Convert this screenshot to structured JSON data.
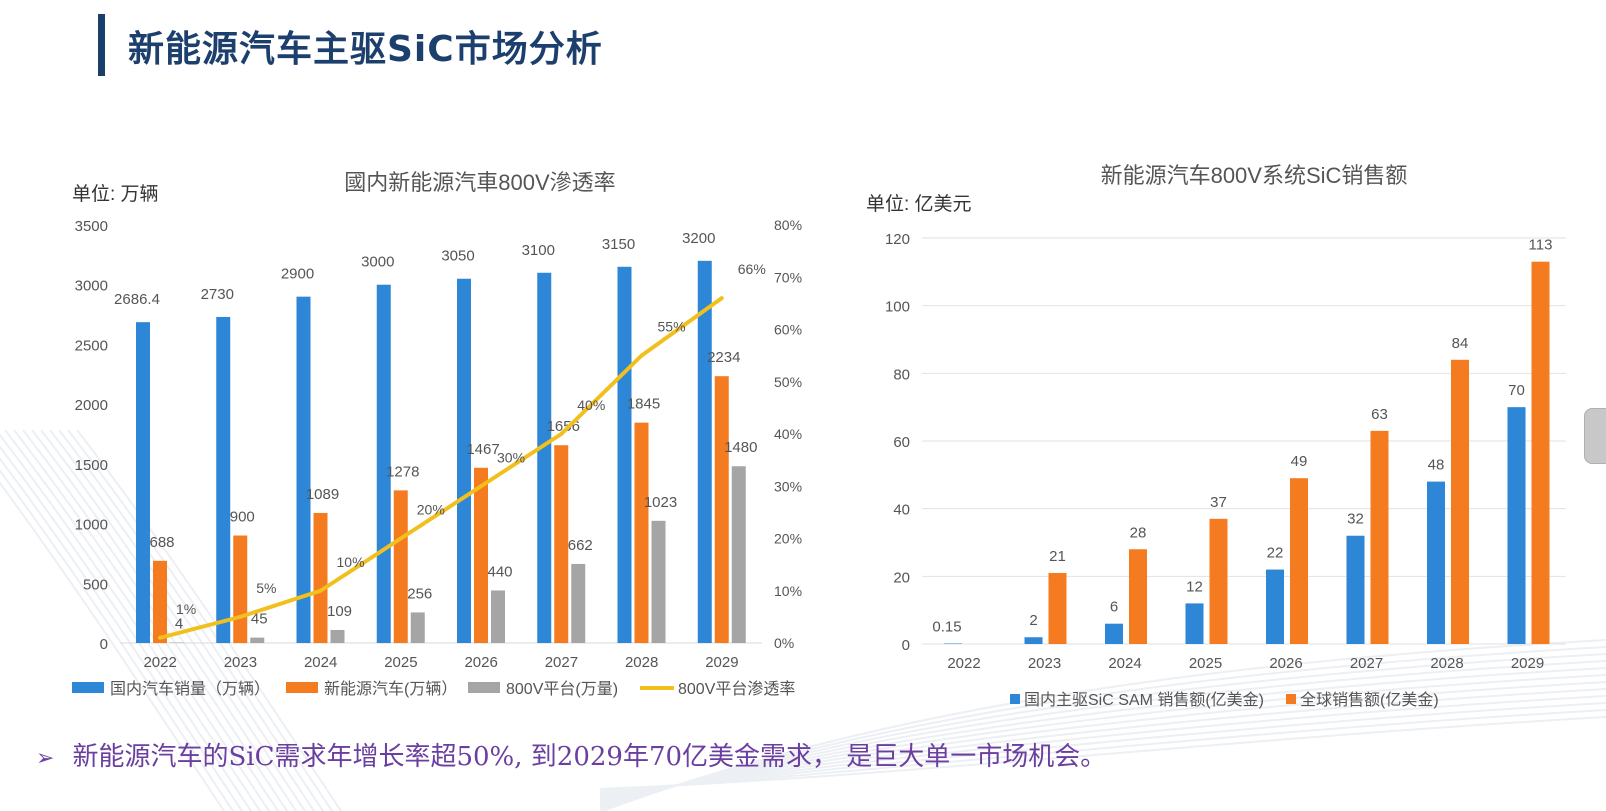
{
  "page": {
    "title": "新能源汽车主驱SiC市场分析",
    "conclusion_marker": "➢",
    "conclusion": "新能源汽车的SiC需求年增长率超50%, 到2029年70亿美金需求，  是巨大单一市场机会。"
  },
  "colors": {
    "title": "#1d3f6e",
    "blue": "#2e86d6",
    "orange": "#f47b20",
    "gray": "#a5a5a5",
    "yellow": "#f2c01e",
    "conclusion": "#6b3fa0"
  },
  "chart_data": [
    {
      "type": "bar",
      "title": "國内新能源汽車800V滲透率",
      "unit_label": "单位: 万辆",
      "categories": [
        "2022",
        "2023",
        "2024",
        "2025",
        "2026",
        "2027",
        "2028",
        "2029"
      ],
      "ylim": [
        0,
        3500
      ],
      "yticks": [
        "0",
        "500",
        "1000",
        "1500",
        "2000",
        "2500",
        "3000",
        "3500"
      ],
      "y2lim": [
        0,
        80
      ],
      "y2ticks": [
        "0%",
        "10%",
        "20%",
        "30%",
        "40%",
        "50%",
        "60%",
        "70%",
        "80%"
      ],
      "legend_position": "bottom",
      "grid": false,
      "series": [
        {
          "name": "国内汽车销量（万辆）",
          "type": "bar",
          "color": "#2e86d6",
          "values": [
            2686.4,
            2730,
            2900,
            3000,
            3050,
            3100,
            3150,
            3200
          ],
          "labels": [
            "2686.4",
            "2730",
            "2900",
            "3000",
            "3050",
            "3100",
            "3150",
            "3200"
          ]
        },
        {
          "name": "新能源汽车(万辆）",
          "type": "bar",
          "color": "#f47b20",
          "values": [
            688,
            900,
            1089,
            1278,
            1467,
            1656,
            1845,
            2234
          ],
          "labels": [
            "688",
            "900",
            "1089",
            "1278",
            "1467",
            "1656",
            "1845",
            "2234"
          ]
        },
        {
          "name": "800V平台(万量)",
          "type": "bar",
          "color": "#a5a5a5",
          "values": [
            4,
            45,
            109,
            256,
            440,
            662,
            1023,
            1480
          ],
          "labels": [
            "4",
            "45",
            "109",
            "256",
            "440",
            "662",
            "1023",
            "1480"
          ]
        },
        {
          "name": "800V平台渗透率",
          "type": "line",
          "axis": "right",
          "color": "#f2c01e",
          "values": [
            1,
            5,
            10,
            20,
            30,
            40,
            55,
            66
          ],
          "labels": [
            "1%",
            "5%",
            "10%",
            "20%",
            "30%",
            "40%",
            "55%",
            "66%"
          ]
        }
      ]
    },
    {
      "type": "bar",
      "title": "新能源汽车800V系统SiC销售额",
      "unit_label": "单位: 亿美元",
      "categories": [
        "2022",
        "2023",
        "2024",
        "2025",
        "2026",
        "2027",
        "2028",
        "2029"
      ],
      "ylim": [
        0,
        120
      ],
      "yticks": [
        "0",
        "20",
        "40",
        "60",
        "80",
        "100",
        "120"
      ],
      "grid": true,
      "legend_position": "bottom",
      "series": [
        {
          "name": "国内主驱SiC SAM 销售额(亿美金)",
          "color": "#2e86d6",
          "values": [
            0.15,
            2,
            6,
            12,
            22,
            32,
            48,
            70
          ],
          "labels": [
            "0.15",
            "2",
            "6",
            "12",
            "22",
            "32",
            "48",
            "70"
          ]
        },
        {
          "name": "全球销售额(亿美金)",
          "color": "#f47b20",
          "values": [
            null,
            21,
            28,
            37,
            49,
            63,
            84,
            113
          ],
          "labels": [
            "",
            "21",
            "28",
            "37",
            "49",
            "63",
            "84",
            "113"
          ]
        }
      ]
    }
  ]
}
